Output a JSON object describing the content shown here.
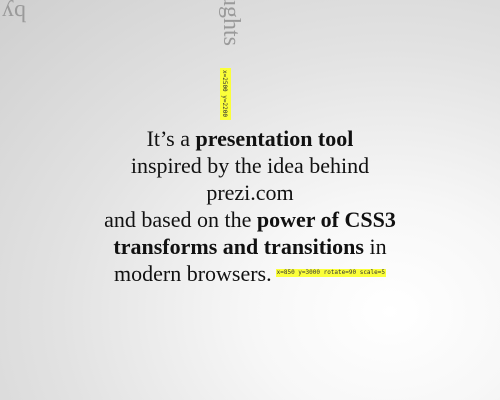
{
  "fragments": {
    "top_left": "by",
    "top_middle": "ughts"
  },
  "step_labels": {
    "vertical": "x=2500 y=2200",
    "inline": "x=850 y=3000 rotate=90 scale=5"
  },
  "message": {
    "l1_pre": "It’s a ",
    "l1_bold": "presentation tool",
    "l2": "inspired by the idea behind",
    "l3": "prezi.com",
    "l4_pre": "and based on the ",
    "l4_bold": "power of CSS3",
    "l5_bold": "transforms and transitions",
    "l5_post": " in",
    "l6": "modern browsers."
  },
  "colors": {
    "highlight": "#fbff3a",
    "faded_text": "#9a9a9a"
  }
}
